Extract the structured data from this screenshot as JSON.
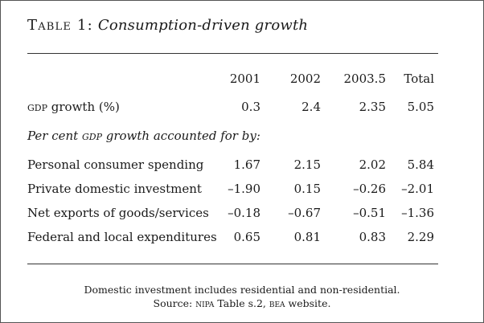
{
  "title": {
    "label": "Table 1:",
    "subtitle": "Consumption-driven growth"
  },
  "columns": [
    "2001",
    "2002",
    "2003.5",
    "Total"
  ],
  "gdp_row": {
    "label_sc": "GDP",
    "label_rest": " growth (%)",
    "values": [
      "0.3",
      "2.4",
      "2.35",
      "5.05"
    ]
  },
  "section_heading": {
    "pre": "Per cent ",
    "sc": "GDP",
    "post": " growth accounted for by:"
  },
  "rows": [
    {
      "label": "Personal consumer spending",
      "values": [
        "1.67",
        "2.15",
        "2.02",
        "5.84"
      ]
    },
    {
      "label": "Private domestic investment",
      "values": [
        "–1.90",
        "0.15",
        "–0.26",
        "–2.01"
      ]
    },
    {
      "label": "Net exports of goods/services",
      "values": [
        "–0.18",
        "–0.67",
        "–0.51",
        "–1.36"
      ]
    },
    {
      "label": "Federal and local expenditures",
      "values": [
        "0.65",
        "0.81",
        "0.83",
        "2.29"
      ]
    }
  ],
  "notes": {
    "line1": "Domestic investment includes residential and non-residential.",
    "line2_pre": "Source: ",
    "line2_sc1": "NIPA",
    "line2_mid": " Table s.2, ",
    "line2_sc2": "BEA",
    "line2_post": " website."
  }
}
